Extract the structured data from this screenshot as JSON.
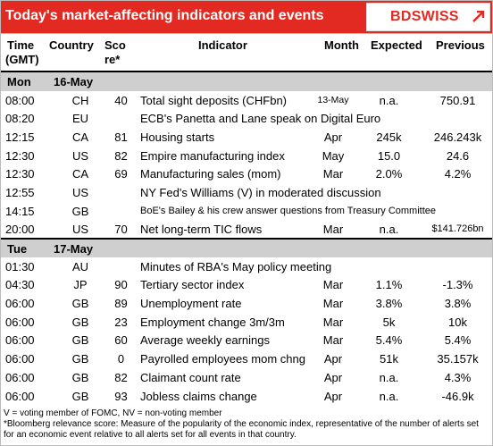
{
  "header": {
    "title": "Today's market-affecting indicators and events",
    "logo_text": "BDSWISS",
    "brand_color": "#e32a22"
  },
  "columns": {
    "time": "Time",
    "time_sub": "(GMT)",
    "country": "Country",
    "score": "Sco",
    "score_sub": "re*",
    "indicator": "Indicator",
    "month": "Month",
    "expected": "Expected",
    "previous": "Previous"
  },
  "days": [
    {
      "day": "Mon",
      "date": "16-May",
      "rows": [
        {
          "time": "08:00",
          "country": "CH",
          "score": "40",
          "indicator": "Total sight deposits (CHFbn)",
          "month": "13-May",
          "expected": "n.a.",
          "previous": "750.91"
        },
        {
          "time": "08:20",
          "country": "EU",
          "score": "",
          "indicator": "ECB's Panetta and Lane speak on Digital Euro",
          "month": "",
          "expected": "",
          "previous": ""
        },
        {
          "time": "12:15",
          "country": "CA",
          "score": "81",
          "indicator": "Housing starts",
          "month": "Apr",
          "expected": "245k",
          "previous": "246.243k"
        },
        {
          "time": "12:30",
          "country": "US",
          "score": "82",
          "indicator": "Empire manufacturing index",
          "month": "May",
          "expected": "15.0",
          "previous": "24.6"
        },
        {
          "time": "12:30",
          "country": "CA",
          "score": "69",
          "indicator": "Manufacturing sales (mom)",
          "month": "Mar",
          "expected": "2.0%",
          "previous": "4.2%"
        },
        {
          "time": "12:55",
          "country": "US",
          "score": "",
          "indicator": "NY Fed's Williams (V) in moderated discussion",
          "month": "",
          "expected": "",
          "previous": ""
        },
        {
          "time": "14:15",
          "country": "GB",
          "score": "",
          "indicator": "BoE's Bailey & his crew answer questions from Treasury Committee",
          "month": "",
          "expected": "",
          "previous": ""
        },
        {
          "time": "20:00",
          "country": "US",
          "score": "70",
          "indicator": "Net long-term TIC flows",
          "month": "Mar",
          "expected": "n.a.",
          "previous": "$141.726bn"
        }
      ]
    },
    {
      "day": "Tue",
      "date": "17-May",
      "rows": [
        {
          "time": "01:30",
          "country": "AU",
          "score": "",
          "indicator": "Minutes of RBA's May policy meeting",
          "month": "",
          "expected": "",
          "previous": ""
        },
        {
          "time": "04:30",
          "country": "JP",
          "score": "90",
          "indicator": "Tertiary sector index",
          "month": "Mar",
          "expected": "1.1%",
          "previous": "-1.3%"
        },
        {
          "time": "06:00",
          "country": "GB",
          "score": "89",
          "indicator": "Unemployment rate",
          "month": "Mar",
          "expected": "3.8%",
          "previous": "3.8%"
        },
        {
          "time": "06:00",
          "country": "GB",
          "score": "23",
          "indicator": "Employment change 3m/3m",
          "month": "Mar",
          "expected": "5k",
          "previous": "10k"
        },
        {
          "time": "06:00",
          "country": "GB",
          "score": "60",
          "indicator": "Average weekly earnings",
          "month": "Mar",
          "expected": "5.4%",
          "previous": "5.4%"
        },
        {
          "time": "06:00",
          "country": "GB",
          "score": "0",
          "indicator": "Payrolled employees mom chng",
          "month": "Apr",
          "expected": "51k",
          "previous": "35.157k"
        },
        {
          "time": "06:00",
          "country": "GB",
          "score": "82",
          "indicator": "Claimant count rate",
          "month": "Apr",
          "expected": "n.a.",
          "previous": "4.3%"
        },
        {
          "time": "06:00",
          "country": "GB",
          "score": "93",
          "indicator": "Jobless claims change",
          "month": "Apr",
          "expected": "n.a.",
          "previous": "-46.9k"
        }
      ]
    }
  ],
  "footer": {
    "line1": "V = voting member of FOMC, NV = non-voting member",
    "line2": "*Bloomberg relevance score:  Measure of the popularity of the economic index, representative of the number of alerts set for an economic event relative to all alerts set for all events in that country."
  }
}
